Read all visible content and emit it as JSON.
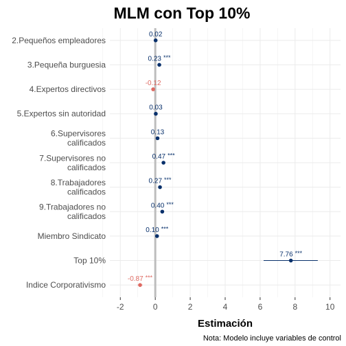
{
  "chart_data": {
    "type": "scatter",
    "title": "MLM con Top 10%",
    "xlabel": "Estimación",
    "ylabel": "",
    "caption": "Nota: Modelo incluye variables de control",
    "xlim": [
      -2.6,
      10.6
    ],
    "xticks": [
      -2,
      0,
      2,
      4,
      6,
      8,
      10
    ],
    "zero_line": 0,
    "grid": true,
    "colors": {
      "positive": "#08306b",
      "negative": "#de6a62",
      "zero_line": "#bdbdbd",
      "grid": "#ebebeb"
    },
    "points": [
      {
        "label": "2.Pequeños empleadores",
        "label_lines": [
          "2.Pequeños empleadores"
        ],
        "estimate": 0.02,
        "est_text": "0.02",
        "stars": "",
        "ci": [
          0.0,
          0.04
        ],
        "sign": "positive"
      },
      {
        "label": "3.Pequeña burguesia",
        "label_lines": [
          "3.Pequeña burguesia"
        ],
        "estimate": 0.23,
        "est_text": "0.23",
        "stars": "***",
        "ci": [
          0.19,
          0.27
        ],
        "sign": "positive"
      },
      {
        "label": "4.Expertos directivos",
        "label_lines": [
          "4.Expertos directivos"
        ],
        "estimate": -0.12,
        "est_text": "-0.12",
        "stars": "",
        "ci": [
          -0.16,
          -0.08
        ],
        "sign": "negative"
      },
      {
        "label": "5.Expertos sin autoridad",
        "label_lines": [
          "5.Expertos sin autoridad"
        ],
        "estimate": 0.03,
        "est_text": "0.03",
        "stars": "",
        "ci": [
          0.0,
          0.06
        ],
        "sign": "positive"
      },
      {
        "label": "6.Supervisores calificados",
        "label_lines": [
          "6.Supervisores",
          "calificados"
        ],
        "estimate": 0.13,
        "est_text": "0.13",
        "stars": "",
        "ci": [
          0.09,
          0.17
        ],
        "sign": "positive"
      },
      {
        "label": "7.Supervisores no calificados",
        "label_lines": [
          "7.Supervisores no",
          "calificados"
        ],
        "estimate": 0.47,
        "est_text": "0.47",
        "stars": "***",
        "ci": [
          0.42,
          0.52
        ],
        "sign": "positive"
      },
      {
        "label": "8.Trabajadores calificados",
        "label_lines": [
          "8.Trabajadores",
          "calificados"
        ],
        "estimate": 0.27,
        "est_text": "0.27",
        "stars": "***",
        "ci": [
          0.23,
          0.31
        ],
        "sign": "positive"
      },
      {
        "label": "9.Trabajadores no calificados",
        "label_lines": [
          "9.Trabajadores no",
          "calificados"
        ],
        "estimate": 0.4,
        "est_text": "0.40",
        "stars": "***",
        "ci": [
          0.35,
          0.45
        ],
        "sign": "positive"
      },
      {
        "label": "Miembro Sindicato",
        "label_lines": [
          "Miembro Sindicato"
        ],
        "estimate": 0.1,
        "est_text": "0.10",
        "stars": "***",
        "ci": [
          0.07,
          0.13
        ],
        "sign": "positive"
      },
      {
        "label": "Top 10%",
        "label_lines": [
          "Top 10%"
        ],
        "estimate": 7.76,
        "est_text": "7.76",
        "stars": "***",
        "ci": [
          6.2,
          9.3
        ],
        "sign": "positive"
      },
      {
        "label": "Indice Corporativismo",
        "label_lines": [
          "Indice Corporativismo"
        ],
        "estimate": -0.87,
        "est_text": "-0.87",
        "stars": "***",
        "ci": [
          -1.0,
          -0.74
        ],
        "sign": "negative"
      }
    ]
  }
}
